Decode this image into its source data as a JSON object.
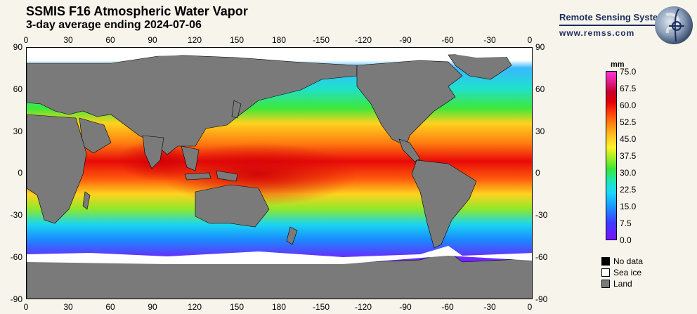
{
  "header": {
    "title": "SSMIS F16 Atmospheric Water Vapor",
    "subtitle": "3-day average ending 2024-07-06"
  },
  "branding": {
    "org": "Remote Sensing Systems",
    "url": "www.remss.com",
    "logo_icon": "globe-logo-icon"
  },
  "axes": {
    "longitude_ticks": [
      "0",
      "30",
      "60",
      "90",
      "120",
      "150",
      "180",
      "-150",
      "-120",
      "-90",
      "-60",
      "-30",
      "0"
    ],
    "latitude_ticks": [
      "90",
      "60",
      "30",
      "0",
      "-30",
      "-60",
      "-90"
    ]
  },
  "colorbar": {
    "unit": "mm",
    "range": [
      0,
      75
    ],
    "labels": [
      "75.0",
      "67.5",
      "60.0",
      "52.5",
      "45.0",
      "37.5",
      "30.0",
      "22.5",
      "15.0",
      "7.5",
      "0.0"
    ]
  },
  "legend": [
    {
      "label": "No data",
      "color": "#000000",
      "icon": "black-square-icon"
    },
    {
      "label": "Sea ice",
      "color": "#ffffff",
      "icon": "white-square-icon"
    },
    {
      "label": "Land",
      "color": "#7a7a7a",
      "icon": "gray-square-icon"
    }
  ],
  "colors": {
    "land": "#7a7a7a",
    "ice": "#ffffff",
    "ocean_dry": "#7a12ff",
    "ocean_wet": "#e00008"
  }
}
